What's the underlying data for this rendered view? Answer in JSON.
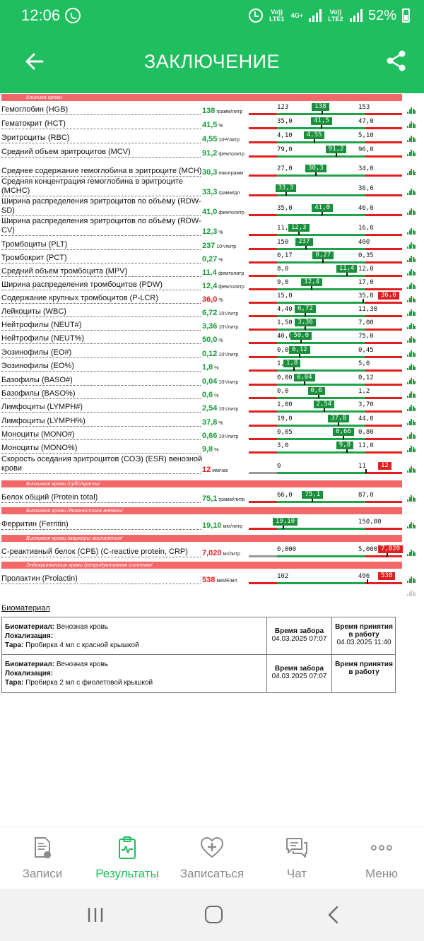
{
  "status_bar": {
    "time": "12:06",
    "sim1": "Vo)) LTE1",
    "net": "4G+",
    "sim2": "Vo)) LTE2",
    "battery": "52%"
  },
  "appbar": {
    "title": "ЗАКЛЮЧЕНИЕ"
  },
  "sections": {
    "s1": "Клиника крови",
    "s2": "Биохимия крови /субстраты/",
    "s3": "Биохимия крови /диагностика анемии/",
    "s4": "Биохимия крови /маркеры воспаления/",
    "s5": "Эндокринология крови /репродуктивная система/"
  },
  "results": [
    {
      "name": "Гемоглобин (HGB)",
      "value": "138",
      "unit": "грамм/литр",
      "low": "123",
      "high": "153",
      "flag": "normal",
      "position": 0.55
    },
    {
      "name": "Гематокрит (HCT)",
      "value": "41,5",
      "unit": "%",
      "low": "35,0",
      "high": "47,0",
      "flag": "normal",
      "position": 0.54
    },
    {
      "name": "Эритроциты (RBC)",
      "value": "4,55",
      "unit": "10¹²/литр",
      "low": "4,10",
      "high": "5,10",
      "flag": "normal",
      "position": 0.45
    },
    {
      "name": "Средний объем эритроцитов (MCV)",
      "value": "91,2",
      "unit": "фемтолитр",
      "low": "79,0",
      "high": "96,0",
      "flag": "normal",
      "position": 0.72
    },
    {
      "name": "Среднее содержание гемоглобина в эритроците (MCH)",
      "value": "30,3",
      "unit": "пикограмм",
      "low": "27,0",
      "high": "34,0",
      "flag": "normal",
      "position": 0.47
    },
    {
      "name": "Средняя концентрация гемоглобина в эритроците (MCHC)",
      "value": "33,3",
      "unit": "грамм/дл",
      "low": "33,0",
      "high": "36,0",
      "flag": "normal",
      "position": 0.1
    },
    {
      "name": "Ширина распределения эритроцитов по объёму (RDW-SD)",
      "value": "41,0",
      "unit": "фемтолитр",
      "low": "35,0",
      "high": "46,0",
      "flag": "normal",
      "position": 0.55
    },
    {
      "name": "Ширина распределения эритроцитов по объёму (RDW-CV)",
      "value": "12,3",
      "unit": "%",
      "low": "11,0",
      "high": "16,0",
      "flag": "normal",
      "position": 0.26
    },
    {
      "name": "Тромбоциты (PLT)",
      "value": "237",
      "unit": "10⁹/литр",
      "low": "150",
      "high": "400",
      "flag": "normal",
      "position": 0.35
    },
    {
      "name": "Тромбокрит (PCT)",
      "value": "0,27",
      "unit": "%",
      "low": "0,17",
      "high": "0,35",
      "flag": "normal",
      "position": 0.56
    },
    {
      "name": "Средний объем тромбоцита (MPV)",
      "value": "11,4",
      "unit": "фемтолитр",
      "low": "8,0",
      "high": "12,0",
      "flag": "normal",
      "position": 0.85
    },
    {
      "name": "Ширина распределения тромбоцитов (PDW)",
      "value": "12,4",
      "unit": "фемтолитр",
      "low": "9,0",
      "high": "17,0",
      "flag": "normal",
      "position": 0.42
    },
    {
      "name": "Содержание крупных тромбоцитов (P-LCR)",
      "value": "36,0",
      "unit": "%",
      "low": "15,0",
      "high": "35,0",
      "flag": "high",
      "position": 1.05
    },
    {
      "name": "Лейкоциты (WBC)",
      "value": "6,72",
      "unit": "10⁹/литр",
      "low": "4,40",
      "high": "11,30",
      "flag": "normal",
      "position": 0.34
    },
    {
      "name": "Нейтрофилы (NEUT#)",
      "value": "3,36",
      "unit": "10⁹/литр",
      "low": "1,50",
      "high": "7,00",
      "flag": "normal",
      "position": 0.34
    },
    {
      "name": "Нейтрофилы (NEUT%)",
      "value": "50,0",
      "unit": "%",
      "low": "40,0",
      "high": "75,0",
      "flag": "normal",
      "position": 0.29
    },
    {
      "name": "Эозинофилы (EO#)",
      "value": "0,12",
      "unit": "10⁹/литр",
      "low": "0,00",
      "high": "0,45",
      "flag": "normal",
      "position": 0.27
    },
    {
      "name": "Эозинофилы (EO%)",
      "value": "1,8",
      "unit": "%",
      "low": "1,0",
      "high": "5,0",
      "flag": "normal",
      "position": 0.2
    },
    {
      "name": "Базофилы (BASO#)",
      "value": "0,04",
      "unit": "10⁹/литр",
      "low": "0,00",
      "high": "0,12",
      "flag": "normal",
      "position": 0.33
    },
    {
      "name": "Базофилы (BASO%)",
      "value": "0,6",
      "unit": "%",
      "low": "0,0",
      "high": "1,2",
      "flag": "normal",
      "position": 0.5
    },
    {
      "name": "Лимфоциты (LYMPH#)",
      "value": "2,54",
      "unit": "10⁹/литр",
      "low": "1,00",
      "high": "3,70",
      "flag": "normal",
      "position": 0.57
    },
    {
      "name": "Лимфоциты (LYMPH%)",
      "value": "37,8",
      "unit": "%",
      "low": "19,0",
      "high": "44,0",
      "flag": "normal",
      "position": 0.75
    },
    {
      "name": "Моноциты (MONO#)",
      "value": "0,66",
      "unit": "10⁹/литр",
      "low": "0,05",
      "high": "0,80",
      "flag": "normal",
      "position": 0.81
    },
    {
      "name": "Моноциты (MONO%)",
      "value": "9,8",
      "unit": "%",
      "low": "3,0",
      "high": "11,0",
      "flag": "normal",
      "position": 0.85
    },
    {
      "name": "Скорость оседания эритроцитов (СОЭ) (ESR) венозной крови",
      "value": "12",
      "unit": "мм/час",
      "low": "0",
      "high": "11",
      "flag": "high",
      "position": 1.09
    },
    {
      "name": "Белок общий (Protein total)",
      "value": "75,1",
      "unit": "грамм/литр",
      "low": "66,0",
      "high": "87,0",
      "flag": "normal",
      "position": 0.43
    },
    {
      "name": "Ферритин (Ferritin)",
      "value": "19,10",
      "unit": "мкг/литр",
      "low": "10,00",
      "high": "150,00",
      "flag": "normal",
      "position": 0.07
    },
    {
      "name": "С-реактивный белок (СРБ) (C-reactive protein, CRP)",
      "value": "7,020",
      "unit": "мг/литр",
      "low": "0,000",
      "high": "5,000",
      "flag": "high",
      "position": 1.4
    },
    {
      "name": "Пролактин (Prolactin)",
      "value": "538",
      "unit": "мкМЕ/мл",
      "low": "102",
      "high": "496",
      "flag": "high",
      "position": 1.1
    }
  ],
  "biomaterial": {
    "title": "Биоматериал",
    "label_bio": "Биоматериал:",
    "label_loc": "Локализация:",
    "label_tara": "Тара:",
    "col_collect": "Время забора",
    "col_accept": "Время принятия в работу",
    "rows": [
      {
        "bio": "Венозная кровь",
        "tara": "Пробирка 4 мл с красной крышкой",
        "collect": "04.03.2025 07:07",
        "accept": "04.03.2025 11:40"
      },
      {
        "bio": "Венозная кровь",
        "tara": "Пробирка 2 мл с фиолетовой крышкой",
        "collect": "04.03.2025 07:07",
        "accept": ""
      }
    ]
  },
  "bottom_nav": [
    {
      "label": "Записи",
      "icon": "document-icon",
      "active": false
    },
    {
      "label": "Результаты",
      "icon": "results-clipboard-icon",
      "active": true
    },
    {
      "label": "Записаться",
      "icon": "heart-plus-icon",
      "active": false
    },
    {
      "label": "Чат",
      "icon": "chat-icon",
      "active": false
    },
    {
      "label": "Меню",
      "icon": "more-dots-icon",
      "active": false
    }
  ],
  "colors": {
    "brand_green": "#1fbf5f",
    "normal_green": "#1a8f3c",
    "alert_red": "#e01f1f",
    "section_red": "#f26767"
  }
}
